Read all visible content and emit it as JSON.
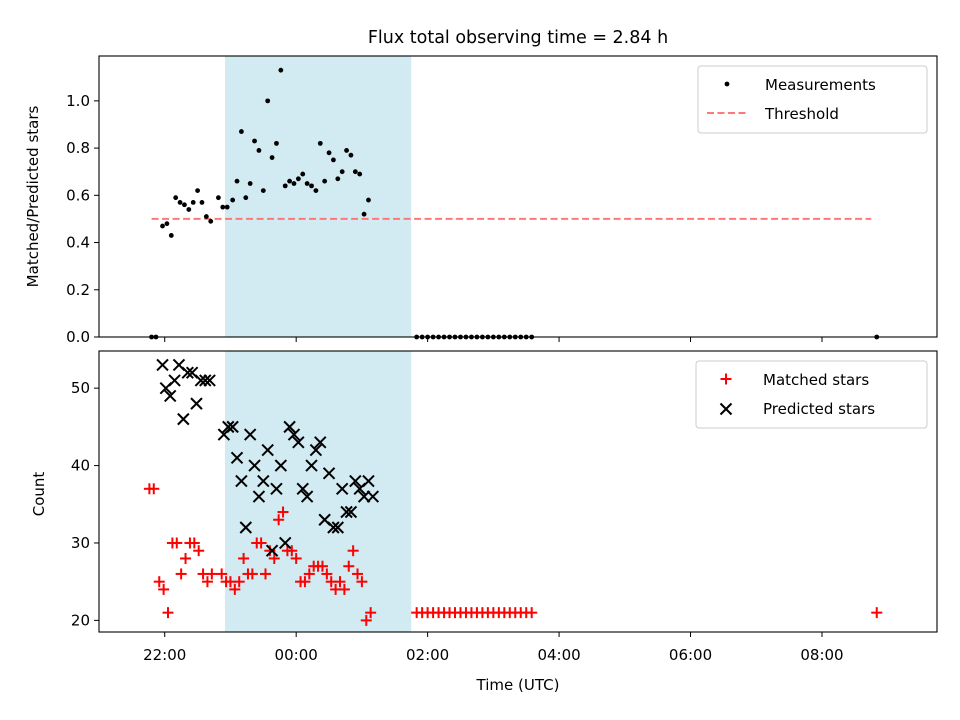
{
  "title": "Flux total observing time = 2.84 h",
  "colors": {
    "highlight": "#add8e6",
    "measurement": "#000000",
    "threshold": "#ff7777",
    "matched": "#ff0000",
    "predicted": "#000000"
  },
  "chart_data": [
    {
      "type": "scatter",
      "ylabel": "Matched/Predicted stars",
      "ylim": [
        0,
        1.19
      ],
      "yticks": [
        "0.0",
        "0.2",
        "0.4",
        "0.6",
        "0.8",
        "1.0"
      ],
      "xlim": [
        "21:00",
        "09:45"
      ],
      "shaded_span": [
        "22:55",
        "01:45"
      ],
      "legend": [
        "Measurements",
        "Threshold"
      ],
      "legend_position": "top-right",
      "threshold": {
        "value": 0.5,
        "x": [
          "21:48",
          "08:45"
        ]
      },
      "series": [
        {
          "name": "Measurements",
          "points": [
            [
              "21:48",
              0.0
            ],
            [
              "21:52",
              0.0
            ],
            [
              "21:58",
              0.47
            ],
            [
              "22:02",
              0.48
            ],
            [
              "22:06",
              0.43
            ],
            [
              "22:10",
              0.59
            ],
            [
              "22:14",
              0.57
            ],
            [
              "22:18",
              0.56
            ],
            [
              "22:22",
              0.54
            ],
            [
              "22:26",
              0.57
            ],
            [
              "22:30",
              0.62
            ],
            [
              "22:34",
              0.57
            ],
            [
              "22:38",
              0.51
            ],
            [
              "22:42",
              0.49
            ],
            [
              "22:49",
              0.59
            ],
            [
              "22:53",
              0.55
            ],
            [
              "22:57",
              0.55
            ],
            [
              "23:02",
              0.58
            ],
            [
              "23:06",
              0.66
            ],
            [
              "23:10",
              0.87
            ],
            [
              "23:14",
              0.59
            ],
            [
              "23:18",
              0.65
            ],
            [
              "23:22",
              0.83
            ],
            [
              "23:26",
              0.79
            ],
            [
              "23:30",
              0.62
            ],
            [
              "23:34",
              1.0
            ],
            [
              "23:38",
              0.76
            ],
            [
              "23:42",
              0.82
            ],
            [
              "23:46",
              1.13
            ],
            [
              "23:50",
              0.64
            ],
            [
              "23:54",
              0.66
            ],
            [
              "23:58",
              0.65
            ],
            [
              "00:02",
              0.67
            ],
            [
              "00:06",
              0.69
            ],
            [
              "00:10",
              0.65
            ],
            [
              "00:14",
              0.64
            ],
            [
              "00:18",
              0.62
            ],
            [
              "00:22",
              0.82
            ],
            [
              "00:26",
              0.66
            ],
            [
              "00:30",
              0.78
            ],
            [
              "00:34",
              0.75
            ],
            [
              "00:38",
              0.67
            ],
            [
              "00:42",
              0.7
            ],
            [
              "00:46",
              0.79
            ],
            [
              "00:50",
              0.77
            ],
            [
              "00:54",
              0.7
            ],
            [
              "00:58",
              0.69
            ],
            [
              "01:02",
              0.52
            ],
            [
              "01:06",
              0.58
            ],
            [
              "01:50",
              0.0
            ],
            [
              "01:55",
              0.0
            ],
            [
              "02:00",
              0.0
            ],
            [
              "02:05",
              0.0
            ],
            [
              "02:10",
              0.0
            ],
            [
              "02:15",
              0.0
            ],
            [
              "02:20",
              0.0
            ],
            [
              "02:25",
              0.0
            ],
            [
              "02:30",
              0.0
            ],
            [
              "02:35",
              0.0
            ],
            [
              "02:40",
              0.0
            ],
            [
              "02:45",
              0.0
            ],
            [
              "02:50",
              0.0
            ],
            [
              "02:55",
              0.0
            ],
            [
              "03:00",
              0.0
            ],
            [
              "03:05",
              0.0
            ],
            [
              "03:10",
              0.0
            ],
            [
              "03:15",
              0.0
            ],
            [
              "03:20",
              0.0
            ],
            [
              "03:25",
              0.0
            ],
            [
              "03:30",
              0.0
            ],
            [
              "03:35",
              0.0
            ],
            [
              "08:50",
              0.0
            ]
          ]
        }
      ]
    },
    {
      "type": "scatter",
      "ylabel": "Count",
      "xlabel": "Time (UTC)",
      "ylim": [
        18.5,
        54.8
      ],
      "yticks": [
        "20",
        "30",
        "40",
        "50"
      ],
      "xlim": [
        "21:00",
        "09:45"
      ],
      "xticks": [
        "22:00",
        "00:00",
        "02:00",
        "04:00",
        "06:00",
        "08:00"
      ],
      "shaded_span": [
        "22:55",
        "01:45"
      ],
      "legend": [
        "Matched stars",
        "Predicted stars"
      ],
      "legend_position": "top-right",
      "series": [
        {
          "name": "Matched stars",
          "points": [
            [
              "21:46",
              37
            ],
            [
              "21:50",
              37
            ],
            [
              "21:55",
              25
            ],
            [
              "21:59",
              24
            ],
            [
              "22:03",
              21
            ],
            [
              "22:07",
              30
            ],
            [
              "22:11",
              30
            ],
            [
              "22:15",
              26
            ],
            [
              "22:19",
              28
            ],
            [
              "22:23",
              30
            ],
            [
              "22:27",
              30
            ],
            [
              "22:31",
              29
            ],
            [
              "22:35",
              26
            ],
            [
              "22:39",
              25
            ],
            [
              "22:43",
              26
            ],
            [
              "22:52",
              26
            ],
            [
              "22:56",
              25
            ],
            [
              "23:00",
              25
            ],
            [
              "23:04",
              24
            ],
            [
              "23:08",
              25
            ],
            [
              "23:12",
              28
            ],
            [
              "23:16",
              26
            ],
            [
              "23:20",
              26
            ],
            [
              "23:24",
              30
            ],
            [
              "23:28",
              30
            ],
            [
              "23:32",
              26
            ],
            [
              "23:36",
              29
            ],
            [
              "23:40",
              28
            ],
            [
              "23:44",
              33
            ],
            [
              "23:48",
              34
            ],
            [
              "23:52",
              29
            ],
            [
              "23:56",
              29
            ],
            [
              "00:00",
              28
            ],
            [
              "00:04",
              25
            ],
            [
              "00:08",
              25
            ],
            [
              "00:12",
              26
            ],
            [
              "00:16",
              27
            ],
            [
              "00:20",
              27
            ],
            [
              "00:24",
              27
            ],
            [
              "00:28",
              26
            ],
            [
              "00:32",
              25
            ],
            [
              "00:36",
              24
            ],
            [
              "00:40",
              25
            ],
            [
              "00:44",
              24
            ],
            [
              "00:48",
              27
            ],
            [
              "00:52",
              29
            ],
            [
              "00:56",
              26
            ],
            [
              "01:00",
              25
            ],
            [
              "01:04",
              20
            ],
            [
              "01:08",
              21
            ],
            [
              "01:50",
              21
            ],
            [
              "01:55",
              21
            ],
            [
              "02:00",
              21
            ],
            [
              "02:05",
              21
            ],
            [
              "02:10",
              21
            ],
            [
              "02:15",
              21
            ],
            [
              "02:20",
              21
            ],
            [
              "02:25",
              21
            ],
            [
              "02:30",
              21
            ],
            [
              "02:35",
              21
            ],
            [
              "02:40",
              21
            ],
            [
              "02:45",
              21
            ],
            [
              "02:50",
              21
            ],
            [
              "02:55",
              21
            ],
            [
              "03:00",
              21
            ],
            [
              "03:05",
              21
            ],
            [
              "03:10",
              21
            ],
            [
              "03:15",
              21
            ],
            [
              "03:20",
              21
            ],
            [
              "03:25",
              21
            ],
            [
              "03:30",
              21
            ],
            [
              "03:35",
              21
            ],
            [
              "08:50",
              21
            ]
          ]
        },
        {
          "name": "Predicted stars",
          "points": [
            [
              "21:58",
              53
            ],
            [
              "22:01",
              50
            ],
            [
              "22:05",
              49
            ],
            [
              "22:09",
              51
            ],
            [
              "22:13",
              53
            ],
            [
              "22:17",
              46
            ],
            [
              "22:21",
              52
            ],
            [
              "22:25",
              52
            ],
            [
              "22:29",
              48
            ],
            [
              "22:33",
              51
            ],
            [
              "22:37",
              51
            ],
            [
              "22:41",
              51
            ],
            [
              "22:54",
              44
            ],
            [
              "22:58",
              45
            ],
            [
              "23:02",
              45
            ],
            [
              "23:06",
              41
            ],
            [
              "23:10",
              38
            ],
            [
              "23:14",
              32
            ],
            [
              "23:18",
              44
            ],
            [
              "23:22",
              40
            ],
            [
              "23:26",
              36
            ],
            [
              "23:30",
              38
            ],
            [
              "23:34",
              42
            ],
            [
              "23:38",
              29
            ],
            [
              "23:42",
              37
            ],
            [
              "23:46",
              40
            ],
            [
              "23:50",
              30
            ],
            [
              "23:54",
              45
            ],
            [
              "23:58",
              44
            ],
            [
              "00:02",
              43
            ],
            [
              "00:06",
              37
            ],
            [
              "00:10",
              36
            ],
            [
              "00:14",
              40
            ],
            [
              "00:18",
              42
            ],
            [
              "00:22",
              43
            ],
            [
              "00:26",
              33
            ],
            [
              "00:30",
              39
            ],
            [
              "00:34",
              32
            ],
            [
              "00:38",
              32
            ],
            [
              "00:42",
              37
            ],
            [
              "00:46",
              34
            ],
            [
              "00:50",
              34
            ],
            [
              "00:54",
              38
            ],
            [
              "00:58",
              37
            ],
            [
              "01:02",
              36
            ],
            [
              "01:06",
              38
            ],
            [
              "01:10",
              36
            ]
          ]
        }
      ]
    }
  ]
}
